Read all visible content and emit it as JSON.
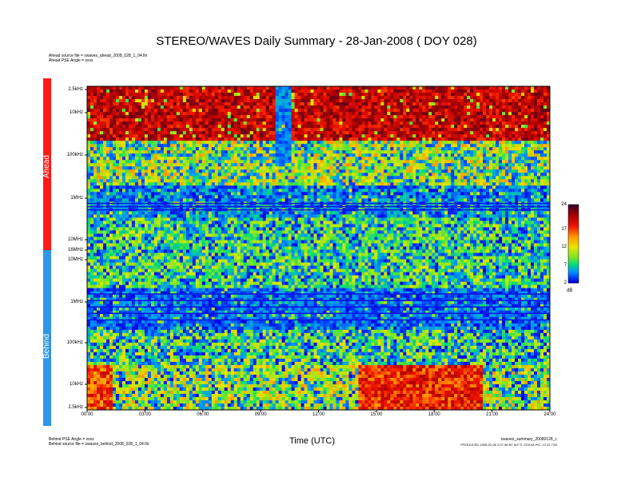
{
  "page": {
    "title": "STEREO/WAVES Daily Summary - 28-Jan-2008 ( DOY 028)",
    "ahead_line1": "Ahead source file = swaves_ahead_2008_028_1_04.fin",
    "ahead_line2": "Ahead PSE Angle = xxxx",
    "behind_line1": "Behind PSE Angle = xxxx",
    "behind_line2": "Behind source file = swaves_behind_2008_028_1_04.fin",
    "footer_right1": "swaves_summary_20080128_c",
    "footer_right2": "PRODUCED 2008-02-08 2:07:36 BY M.F.S. ZOXXA PIC. 12.01 T/W",
    "ahead_label": "Ahead",
    "behind_label": "Behind",
    "xlabel": "Time (UTC)",
    "colorbar_unit": "dB"
  },
  "colors": {
    "ahead_bar": "#ff1a1a",
    "behind_bar": "#2e96e6"
  },
  "chart_data": {
    "type": "heatmap",
    "title": "STEREO/WAVES Daily Summary - 28-Jan-2008 ( DOY 028)",
    "xlabel": "Time (UTC)",
    "x_ticks": [
      "00:00",
      "03:00",
      "06:00",
      "09:00",
      "12:00",
      "15:00",
      "18:00",
      "21:00",
      "24:00"
    ],
    "xlim": [
      "00:00",
      "24:00"
    ],
    "panels": [
      {
        "name": "Ahead",
        "y_ticks": [
          "2.5kHz",
          "10kHz",
          "100kHz",
          "1MHz",
          "10MHz",
          "16MHz"
        ]
      },
      {
        "name": "Behind",
        "y_ticks": [
          "10MHz",
          "1MHz",
          "100kHz",
          "10kHz",
          "2.5kHz"
        ]
      }
    ],
    "colorbar": {
      "ticks": [
        "24",
        "17",
        "12",
        "7",
        "2"
      ],
      "range": [
        2,
        24
      ],
      "unit": "dB"
    }
  }
}
